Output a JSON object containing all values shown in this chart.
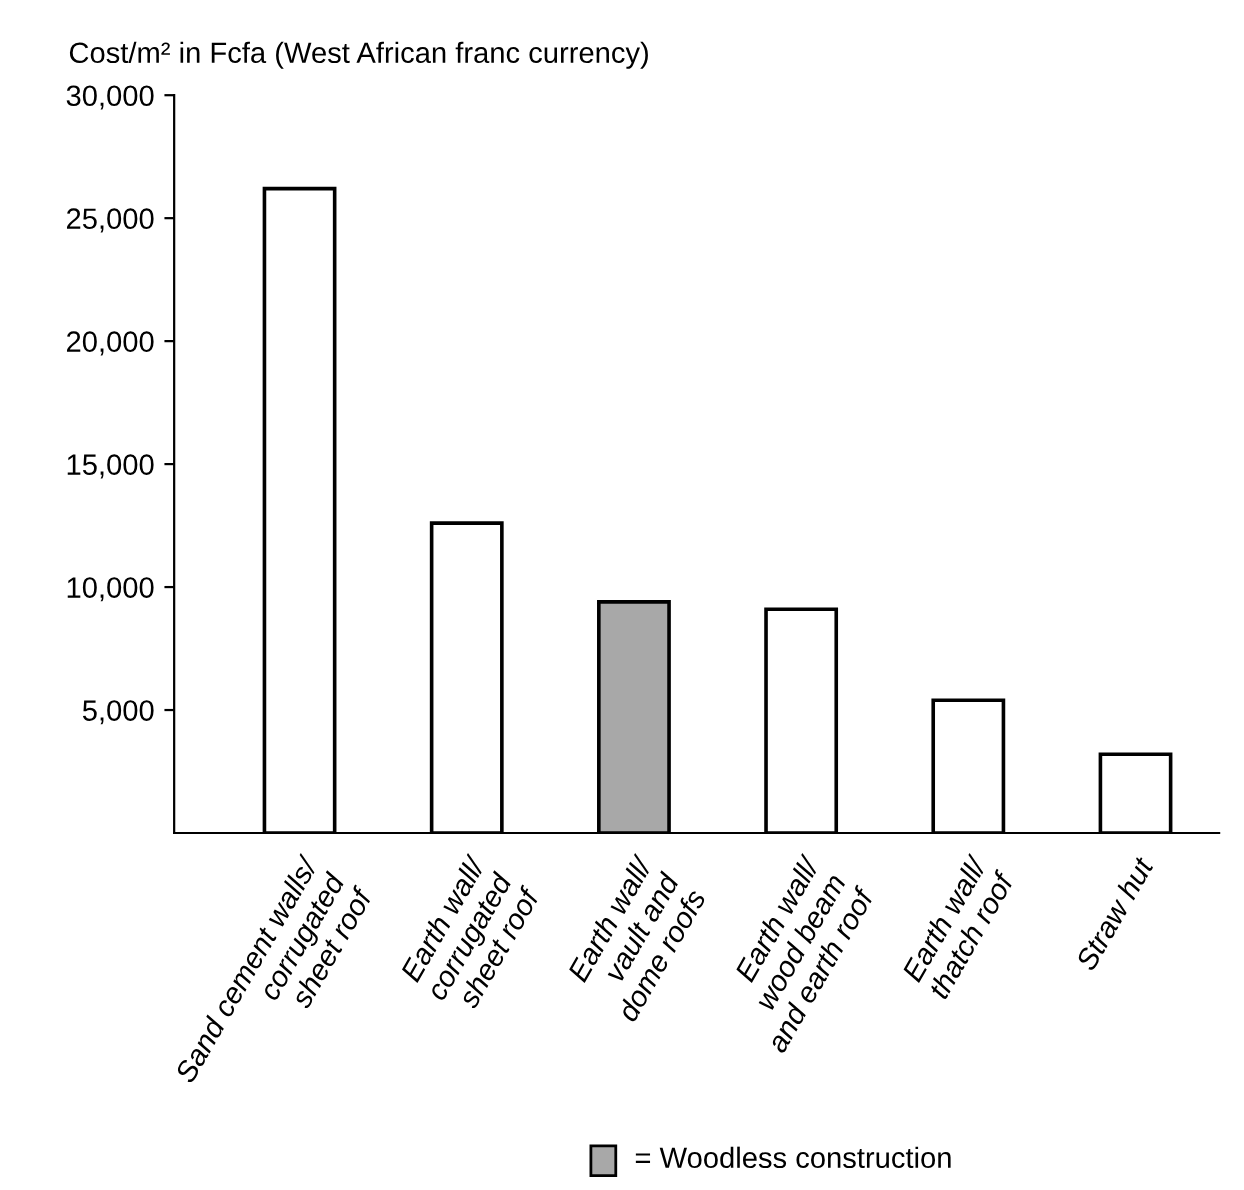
{
  "chart_data": {
    "type": "bar",
    "title": "Cost/m² in Fcfa (West African franc currency)",
    "categories": [
      "Sand cement walls/\ncorrugated\nsheet roof",
      "Earth wall/\ncorrugated\nsheet roof",
      "Earth wall/\nvault and\ndome roofs",
      "Earth wall/\nwood beam\nand earth roof",
      "Earth wall/\nthatch roof",
      "Straw hut"
    ],
    "values": [
      26200,
      12600,
      9400,
      9100,
      5400,
      3200
    ],
    "colors": [
      "#ffffff",
      "#ffffff",
      "#a8a8a8",
      "#ffffff",
      "#ffffff",
      "#ffffff"
    ],
    "ylim": [
      0,
      30000
    ],
    "yticks": [
      {
        "value": 5000,
        "label": "5,000"
      },
      {
        "value": 10000,
        "label": "10,000"
      },
      {
        "value": 15000,
        "label": "15,000"
      },
      {
        "value": 20000,
        "label": "20,000"
      },
      {
        "value": 25000,
        "label": "25,000"
      },
      {
        "value": 30000,
        "label": "30,000"
      }
    ],
    "grid": false,
    "annotations": [
      "= Woodless construction"
    ]
  }
}
